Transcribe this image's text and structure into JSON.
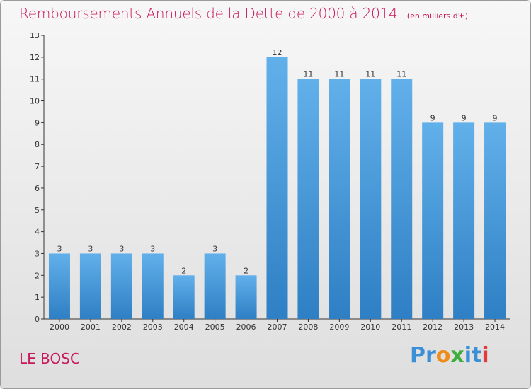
{
  "header": {
    "title": "Remboursements Annuels de la Dette de 2000 à 2014",
    "unit": "(en milliers d'€)"
  },
  "footer": {
    "commune": "LE BOSC",
    "logo_text": "Proxiti"
  },
  "colors": {
    "bar_top": "#62b0ea",
    "bar_bottom": "#2e7fc4",
    "title": "#c8195c",
    "axis": "#333333"
  },
  "chart_data": {
    "type": "bar",
    "title": "Remboursements Annuels de la Dette de 2000 à 2014",
    "subtitle": "(en milliers d'€)",
    "categories": [
      "2000",
      "2001",
      "2002",
      "2003",
      "2004",
      "2005",
      "2006",
      "2007",
      "2008",
      "2009",
      "2010",
      "2011",
      "2012",
      "2013",
      "2014"
    ],
    "values": [
      3,
      3,
      3,
      3,
      2,
      3,
      2,
      12,
      11,
      11,
      11,
      11,
      9,
      9,
      9
    ],
    "ylim": [
      0,
      13
    ],
    "yticks": [
      0,
      1,
      2,
      3,
      4,
      5,
      6,
      7,
      8,
      9,
      10,
      11,
      12,
      13
    ],
    "grid": false,
    "legend": "none"
  }
}
